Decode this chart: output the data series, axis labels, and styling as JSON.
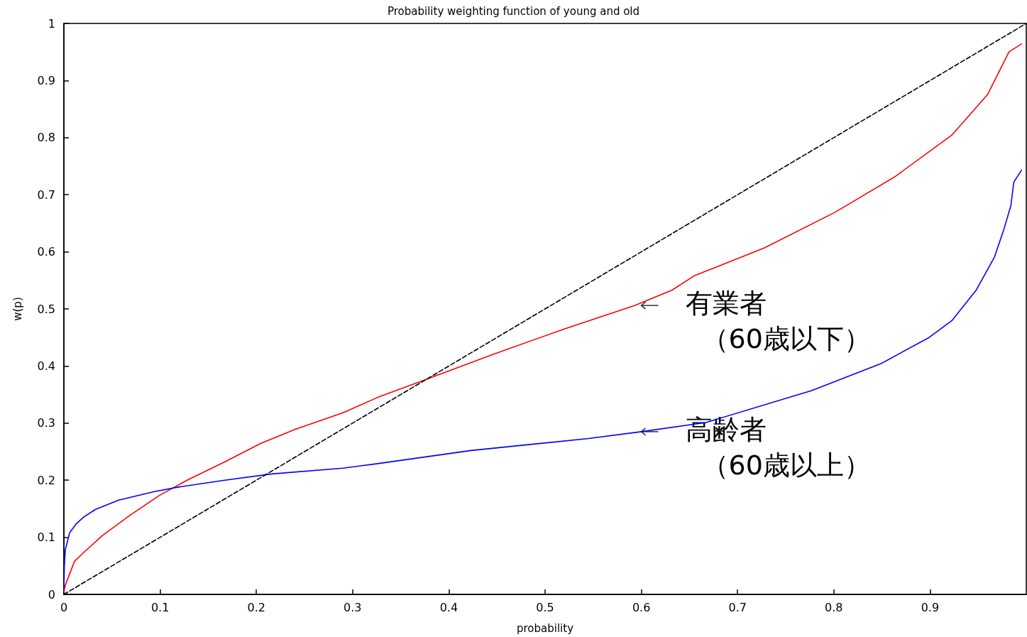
{
  "chart_data": {
    "type": "line",
    "title": "Probability weighting function of young and old",
    "xlabel": "probability",
    "ylabel": "w(p)",
    "xlim": [
      0,
      1
    ],
    "ylim": [
      0,
      1
    ],
    "xticks": [
      0,
      0.1,
      0.2,
      0.3,
      0.4,
      0.5,
      0.6,
      0.7,
      0.8,
      0.9
    ],
    "yticks": [
      0,
      0.1,
      0.2,
      0.3,
      0.4,
      0.5,
      0.6,
      0.7,
      0.8,
      0.9,
      1
    ],
    "grid": false,
    "marker": "none",
    "series": [
      {
        "color": "#ff0000",
        "line_style": "solid",
        "x": [
          0,
          0.0015,
          0.011,
          0.021,
          0.04,
          0.07,
          0.099,
          0.128,
          0.167,
          0.204,
          0.24,
          0.29,
          0.326,
          0.369,
          0.447,
          0.52,
          0.593,
          0.632,
          0.655,
          0.728,
          0.801,
          0.863,
          0.923,
          0.96,
          0.982,
          0.995
        ],
        "values": [
          0.005,
          0.016,
          0.058,
          0.074,
          0.103,
          0.14,
          0.173,
          0.2,
          0.232,
          0.264,
          0.289,
          0.318,
          0.345,
          0.372,
          0.421,
          0.465,
          0.506,
          0.533,
          0.558,
          0.607,
          0.669,
          0.731,
          0.805,
          0.876,
          0.95,
          0.964
        ]
      },
      {
        "color": "#0000ff",
        "line_style": "solid",
        "x": [
          0,
          0.0005,
          0.0015,
          0.006,
          0.013,
          0.021,
          0.033,
          0.057,
          0.094,
          0.119,
          0.167,
          0.216,
          0.29,
          0.326,
          0.423,
          0.545,
          0.6,
          0.667,
          0.777,
          0.85,
          0.899,
          0.923,
          0.948,
          0.967,
          0.977,
          0.984,
          0.987,
          0.995
        ],
        "values": [
          0.01,
          0.05,
          0.078,
          0.108,
          0.124,
          0.136,
          0.149,
          0.165,
          0.18,
          0.188,
          0.2,
          0.211,
          0.221,
          0.229,
          0.252,
          0.273,
          0.285,
          0.301,
          0.357,
          0.405,
          0.45,
          0.48,
          0.533,
          0.591,
          0.641,
          0.681,
          0.722,
          0.743
        ]
      },
      {
        "color": "#000000",
        "line_style": "dashed",
        "x": [
          0,
          1
        ],
        "values": [
          0,
          1
        ]
      }
    ],
    "annotations": [
      {
        "text": "有業者",
        "x": 0.6,
        "y": 0.506
      },
      "（60歳以下）",
      {
        "text": "高齢者",
        "x": 0.6,
        "y": 0.285
      },
      "（60歳以上）"
    ]
  }
}
